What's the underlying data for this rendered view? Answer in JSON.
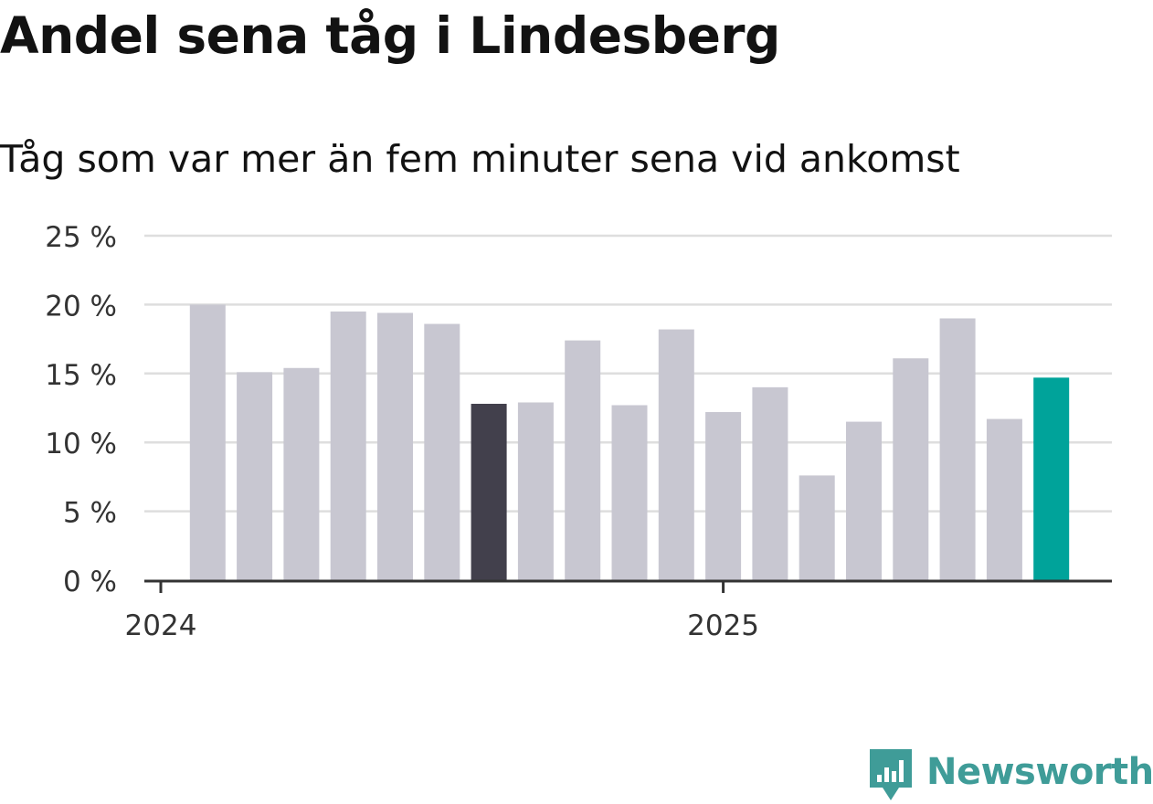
{
  "chart_data": {
    "type": "bar",
    "title": "Andel sena tåg i Lindesberg",
    "subtitle": "Tåg som var mer än fem minuter sena vid ankomst",
    "xlabel": "",
    "ylabel": "",
    "ylim": [
      0,
      25
    ],
    "yticks": [
      0,
      5,
      10,
      15,
      20,
      25
    ],
    "ytick_labels": [
      "0 %",
      "5 %",
      "10 %",
      "15 %",
      "20 %",
      "25 %"
    ],
    "x_tick_labels": [
      {
        "label": "2024",
        "month_index": 0
      },
      {
        "label": "2025",
        "month_index": 12
      }
    ],
    "months": [
      "2024-01",
      "2024-02",
      "2024-03",
      "2024-04",
      "2024-05",
      "2024-06",
      "2024-07",
      "2024-08",
      "2024-09",
      "2024-10",
      "2024-11",
      "2024-12",
      "2025-01",
      "2025-02",
      "2025-03",
      "2025-04",
      "2025-05",
      "2025-06",
      "2025-07"
    ],
    "values": [
      20.0,
      15.1,
      15.4,
      19.5,
      19.4,
      18.6,
      12.8,
      12.9,
      17.4,
      12.7,
      18.2,
      12.2,
      14.0,
      7.6,
      11.5,
      16.1,
      19.0,
      11.7,
      14.7
    ],
    "highlights": [
      {
        "month": "2024-07",
        "color": "#42404c"
      },
      {
        "month": "2025-07",
        "color": "#00a39a"
      }
    ],
    "grid": true,
    "legend": "none"
  },
  "colors": {
    "bar_default": "#c8c7d1",
    "gridline": "#dedede",
    "axis": "#333333",
    "brand": "#3f9c98"
  },
  "brand": {
    "name": "Newsworthy",
    "icon": "newsworthy-logo-icon"
  }
}
